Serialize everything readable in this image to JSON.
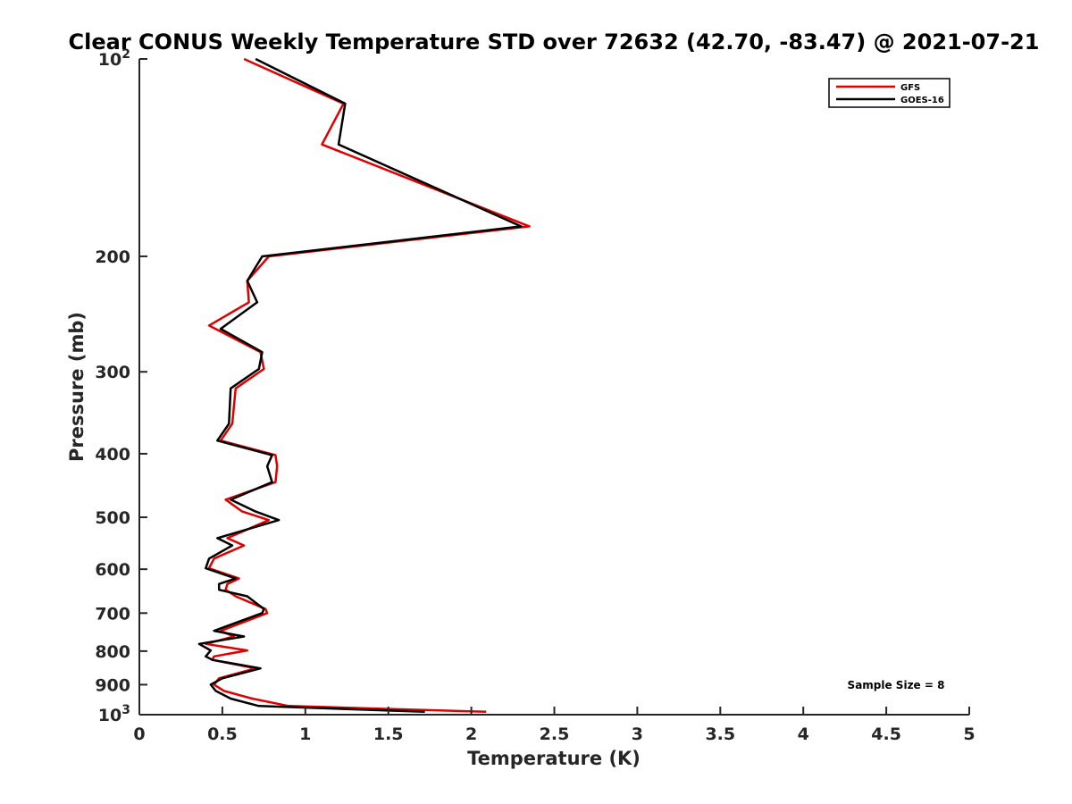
{
  "chart_data": {
    "type": "line",
    "title": "Clear CONUS Weekly Temperature STD over 72632 (42.70, -83.47) @ 2021-07-21",
    "xlabel": "Temperature (K)",
    "ylabel": "Pressure (mb)",
    "xlim": [
      0,
      5
    ],
    "ylim": [
      100,
      1000
    ],
    "y_scale": "log",
    "y_reversed": true,
    "x_ticks": [
      0,
      0.5,
      1,
      1.5,
      2,
      2.5,
      3,
      3.5,
      4,
      4.5,
      5
    ],
    "x_tick_labels": [
      "0",
      "0.5",
      "1",
      "1.5",
      "2",
      "2.5",
      "3",
      "3.5",
      "4",
      "4.5",
      "5"
    ],
    "y_ticks": [
      100,
      200,
      300,
      400,
      500,
      600,
      700,
      800,
      900,
      1000
    ],
    "y_tick_labels": [
      {
        "base": "10",
        "exp": "2"
      },
      {
        "base": "200",
        "exp": ""
      },
      {
        "base": "300",
        "exp": ""
      },
      {
        "base": "400",
        "exp": ""
      },
      {
        "base": "500",
        "exp": ""
      },
      {
        "base": "600",
        "exp": ""
      },
      {
        "base": "700",
        "exp": ""
      },
      {
        "base": "800",
        "exp": ""
      },
      {
        "base": "900",
        "exp": ""
      },
      {
        "base": "10",
        "exp": "3"
      }
    ],
    "grid": false,
    "legend_position": "top-right",
    "annotation": "Sample Size = 8",
    "series": [
      {
        "name": "GFS",
        "color": "#e00000",
        "points": [
          [
            0.63,
            100
          ],
          [
            1.23,
            117
          ],
          [
            1.1,
            135
          ],
          [
            2.35,
            180
          ],
          [
            0.78,
            200
          ],
          [
            0.65,
            218
          ],
          [
            0.66,
            235
          ],
          [
            0.42,
            255
          ],
          [
            0.73,
            280
          ],
          [
            0.75,
            297
          ],
          [
            0.58,
            318
          ],
          [
            0.56,
            360
          ],
          [
            0.49,
            382
          ],
          [
            0.82,
            402
          ],
          [
            0.83,
            418
          ],
          [
            0.82,
            442
          ],
          [
            0.52,
            470
          ],
          [
            0.62,
            490
          ],
          [
            0.78,
            505
          ],
          [
            0.53,
            538
          ],
          [
            0.63,
            552
          ],
          [
            0.45,
            578
          ],
          [
            0.42,
            598
          ],
          [
            0.6,
            620
          ],
          [
            0.53,
            632
          ],
          [
            0.52,
            645
          ],
          [
            0.58,
            660
          ],
          [
            0.76,
            690
          ],
          [
            0.77,
            700
          ],
          [
            0.49,
            745
          ],
          [
            0.57,
            760
          ],
          [
            0.4,
            780
          ],
          [
            0.65,
            798
          ],
          [
            0.45,
            815
          ],
          [
            0.44,
            825
          ],
          [
            0.7,
            850
          ],
          [
            0.48,
            880
          ],
          [
            0.45,
            900
          ],
          [
            0.51,
            920
          ],
          [
            0.68,
            945
          ],
          [
            0.9,
            970
          ],
          [
            2.09,
            990
          ]
        ]
      },
      {
        "name": "GOES-16",
        "color": "#000000",
        "points": [
          [
            0.7,
            100
          ],
          [
            1.24,
            117
          ],
          [
            1.2,
            135
          ],
          [
            2.3,
            180
          ],
          [
            0.74,
            200
          ],
          [
            0.65,
            218
          ],
          [
            0.71,
            235
          ],
          [
            0.49,
            258
          ],
          [
            0.74,
            280
          ],
          [
            0.72,
            297
          ],
          [
            0.55,
            318
          ],
          [
            0.54,
            360
          ],
          [
            0.47,
            382
          ],
          [
            0.8,
            402
          ],
          [
            0.77,
            418
          ],
          [
            0.8,
            442
          ],
          [
            0.55,
            470
          ],
          [
            0.7,
            490
          ],
          [
            0.84,
            505
          ],
          [
            0.47,
            538
          ],
          [
            0.56,
            552
          ],
          [
            0.42,
            578
          ],
          [
            0.4,
            598
          ],
          [
            0.58,
            620
          ],
          [
            0.48,
            632
          ],
          [
            0.48,
            645
          ],
          [
            0.65,
            660
          ],
          [
            0.75,
            690
          ],
          [
            0.74,
            700
          ],
          [
            0.45,
            745
          ],
          [
            0.63,
            760
          ],
          [
            0.36,
            780
          ],
          [
            0.43,
            798
          ],
          [
            0.4,
            815
          ],
          [
            0.44,
            825
          ],
          [
            0.73,
            850
          ],
          [
            0.5,
            880
          ],
          [
            0.43,
            900
          ],
          [
            0.46,
            920
          ],
          [
            0.55,
            945
          ],
          [
            0.72,
            970
          ],
          [
            1.72,
            990
          ]
        ]
      }
    ]
  }
}
